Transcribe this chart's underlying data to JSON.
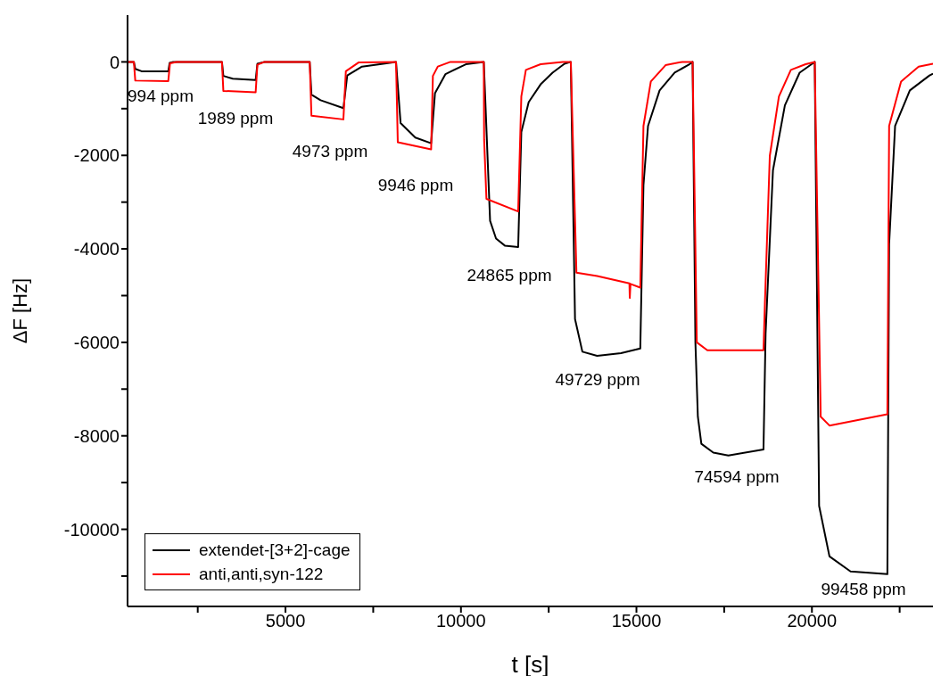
{
  "chart_data": {
    "type": "line",
    "xlabel": "t [s]",
    "ylabel": "ΔF [Hz]",
    "xlim": [
      500,
      23450
    ],
    "ylim": [
      -11650,
      1000
    ],
    "xticks": [
      {
        "value": 2500,
        "label": null
      },
      5000,
      {
        "value": 7500,
        "label": null
      },
      10000,
      {
        "value": 12500,
        "label": null
      },
      15000,
      {
        "value": 17500,
        "label": null
      },
      20000,
      {
        "value": 22500,
        "label": null
      }
    ],
    "yticks": [
      -10000,
      {
        "value": -11000,
        "label": null
      },
      {
        "value": -9000,
        "label": null
      },
      -8000,
      {
        "value": -7000,
        "label": null
      },
      -6000,
      {
        "value": -5000,
        "label": null
      },
      -4000,
      {
        "value": -3000,
        "label": null
      },
      -2000,
      {
        "value": -1000,
        "label": null
      },
      0
    ],
    "grid": false,
    "legend": "bottom left",
    "series": [
      {
        "name": "extendet-[3+2]-cage",
        "color": "#000000",
        "x": [
          500,
          680,
          720,
          900,
          1660,
          1700,
          1800,
          3190,
          3230,
          3500,
          4150,
          4200,
          4400,
          5690,
          5740,
          6000,
          6650,
          6760,
          7180,
          7690,
          8150,
          8280,
          8700,
          9150,
          9260,
          9560,
          10140,
          10650,
          10830,
          11000,
          11250,
          11630,
          11720,
          11930,
          12270,
          12610,
          12950,
          13130,
          13250,
          13460,
          13880,
          14560,
          15110,
          15200,
          15330,
          15660,
          16090,
          16510,
          16600,
          16680,
          16750,
          16850,
          17190,
          17620,
          18620,
          18680,
          18890,
          19230,
          19650,
          19990,
          20080,
          20205,
          20500,
          21100,
          22150,
          22200,
          22370,
          22790,
          23350,
          23450
        ],
        "values": [
          0,
          0,
          -150,
          -200,
          -200,
          -20,
          0,
          0,
          -300,
          -360,
          -390,
          -40,
          0,
          0,
          -700,
          -820,
          -990,
          -290,
          -100,
          -50,
          0,
          -1310,
          -1620,
          -1740,
          -670,
          -260,
          -50,
          0,
          -3400,
          -3780,
          -3930,
          -3960,
          -1500,
          -860,
          -480,
          -230,
          -40,
          0,
          -5500,
          -6200,
          -6290,
          -6230,
          -6130,
          -2640,
          -1370,
          -610,
          -230,
          -50,
          0,
          -6000,
          -7590,
          -8170,
          -8360,
          -8420,
          -8290,
          -5810,
          -2320,
          -930,
          -230,
          -50,
          0,
          -9500,
          -10580,
          -10900,
          -10960,
          -3900,
          -1370,
          -610,
          -290,
          -250
        ]
      },
      {
        "name": "anti,anti,syn-122",
        "color": "#ff0000",
        "x": [
          500,
          680,
          720,
          1660,
          1710,
          1900,
          3190,
          3230,
          4150,
          4200,
          4400,
          5690,
          5740,
          6650,
          6720,
          7090,
          8150,
          8200,
          9150,
          9200,
          9340,
          9700,
          10650,
          10660,
          10726,
          11630,
          11720,
          11850,
          12270,
          12900,
          13130,
          13290,
          13880,
          14800,
          14810,
          14830,
          15110,
          15200,
          15410,
          15830,
          16300,
          16600,
          16720,
          17020,
          18620,
          18660,
          18800,
          19060,
          19400,
          19820,
          20080,
          20250,
          20500,
          22150,
          22200,
          22540,
          23040,
          23450
        ],
        "values": [
          0,
          0,
          -400,
          -410,
          -30,
          0,
          0,
          -620,
          -650,
          -60,
          0,
          0,
          -1150,
          -1230,
          -200,
          -10,
          0,
          -1720,
          -1870,
          -300,
          -100,
          0,
          0,
          -1660,
          -2930,
          -3200,
          -740,
          -170,
          -50,
          0,
          0,
          -4510,
          -4580,
          -4740,
          -5050,
          -4750,
          -4830,
          -1370,
          -420,
          -70,
          0,
          0,
          -6000,
          -6170,
          -6170,
          -5180,
          -2010,
          -740,
          -170,
          -50,
          0,
          -7590,
          -7780,
          -7540,
          -1370,
          -420,
          -100,
          -40
        ]
      }
    ],
    "annotations": [
      "994 ppm",
      "1989 ppm",
      "4973 ppm",
      "9946 ppm",
      "24865 ppm",
      "49729 ppm",
      "74594 ppm",
      "99458 ppm"
    ]
  }
}
